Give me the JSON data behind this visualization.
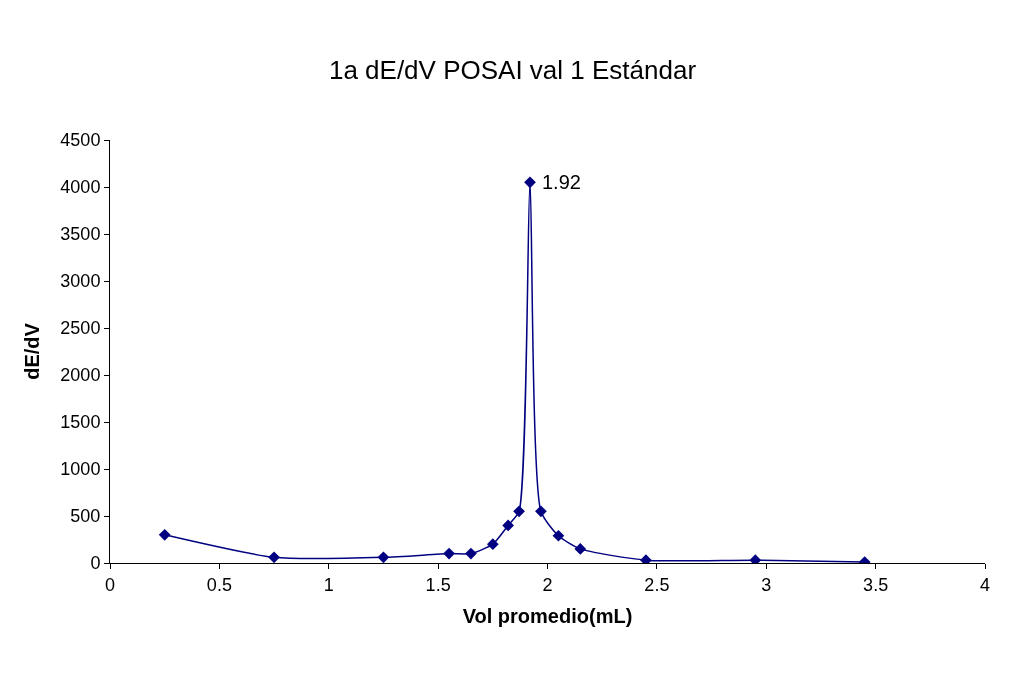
{
  "chart_data": {
    "type": "line",
    "title": "1a dE/dV POSAI val 1 Estándar",
    "xlabel": "Vol promedio(mL)",
    "ylabel": "dE/dV",
    "x": [
      0.25,
      0.75,
      1.25,
      1.55,
      1.65,
      1.75,
      1.82,
      1.87,
      1.92,
      1.97,
      2.05,
      2.15,
      2.45,
      2.95,
      3.45
    ],
    "series": [
      {
        "color": "#000080",
        "values": [
          300,
          60,
          60,
          100,
          100,
          200,
          400,
          550,
          4050,
          550,
          290,
          150,
          30,
          30,
          10
        ]
      }
    ],
    "annotations": [
      {
        "text": "1.92",
        "x": 1.92,
        "y": 4050
      }
    ],
    "xlim": [
      0,
      4
    ],
    "xticks": [
      0,
      0.5,
      1,
      1.5,
      2,
      2.5,
      3,
      3.5,
      4
    ],
    "ylim": [
      0,
      4500
    ],
    "yticks": [
      0,
      500,
      1000,
      1500,
      2000,
      2500,
      3000,
      3500,
      4000,
      4500
    ],
    "marker": "diamond",
    "line_style": "solid"
  }
}
